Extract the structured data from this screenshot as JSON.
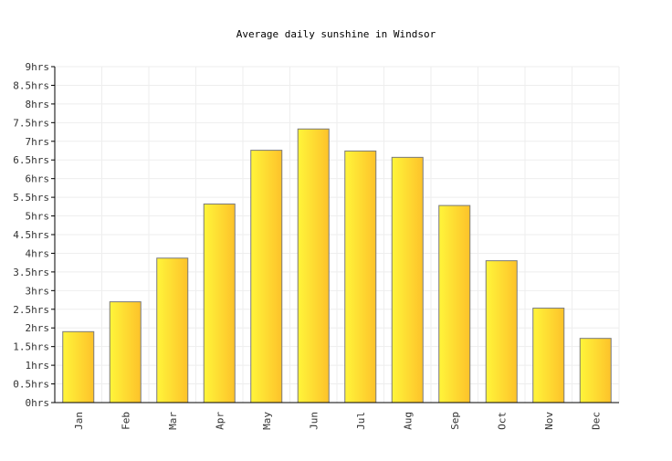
{
  "chart_data": {
    "type": "bar",
    "title": "Average daily sunshine in Windsor",
    "categories": [
      "Jan",
      "Feb",
      "Mar",
      "Apr",
      "May",
      "Jun",
      "Jul",
      "Aug",
      "Sep",
      "Oct",
      "Nov",
      "Dec"
    ],
    "values": [
      1.9,
      2.7,
      3.87,
      5.32,
      6.76,
      7.33,
      6.74,
      6.57,
      5.28,
      3.8,
      2.53,
      1.72
    ],
    "y_ticks": [
      "0hrs",
      "0.5hrs",
      "1hrs",
      "1.5hrs",
      "2hrs",
      "2.5hrs",
      "3hrs",
      "3.5hrs",
      "4hrs",
      "4.5hrs",
      "5hrs",
      "5.5hrs",
      "6hrs",
      "6.5hrs",
      "7hrs",
      "7.5hrs",
      "8hrs",
      "8.5hrs",
      "9hrs"
    ],
    "ylim": [
      0,
      9
    ],
    "xlabel": "",
    "ylabel": "",
    "grid": true,
    "colors": {
      "bar_light": "#fff53a",
      "bar_dark": "#fdc22a",
      "bar_border": "#7a7a7a",
      "grid": "#eeeeee",
      "axis": "#000000"
    }
  }
}
